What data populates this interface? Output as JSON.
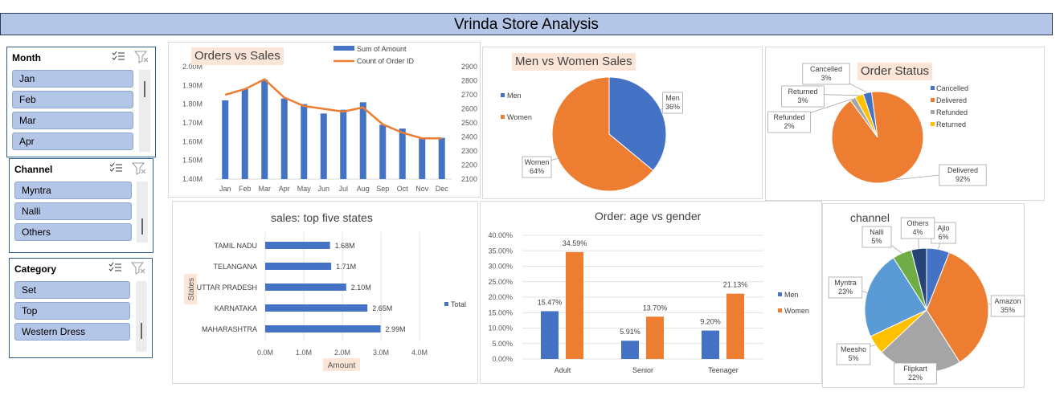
{
  "header": {
    "title": "Vrinda Store Analysis"
  },
  "slicers": [
    {
      "title": "Month",
      "items": [
        "Jan",
        "Feb",
        "Mar",
        "Apr"
      ]
    },
    {
      "title": "Channel",
      "items": [
        "Myntra",
        "Nalli",
        "Others"
      ]
    },
    {
      "title": "Category",
      "items": [
        "Set",
        "Top",
        "Western Dress"
      ]
    }
  ],
  "colors": {
    "blue": "#4472c4",
    "orange": "#ed7d31",
    "gray": "#a5a5a5",
    "gold": "#ffc000",
    "lightblue": "#5b9bd5",
    "green": "#70ad47",
    "navy": "#264478"
  },
  "chart_data": [
    {
      "id": "orders-vs-sales",
      "type": "bar+line",
      "title": "Orders vs Sales",
      "categories": [
        "Jan",
        "Feb",
        "Mar",
        "Apr",
        "May",
        "Jun",
        "Jul",
        "Aug",
        "Sep",
        "Oct",
        "Nov",
        "Dec"
      ],
      "series": [
        {
          "name": "Sum of Amount",
          "type": "bar",
          "axis": "left",
          "values": [
            1.82,
            1.88,
            1.93,
            1.83,
            1.8,
            1.75,
            1.77,
            1.81,
            1.69,
            1.67,
            1.62,
            1.62
          ]
        },
        {
          "name": "Count of Order ID",
          "type": "line",
          "axis": "right",
          "values": [
            2700,
            2740,
            2810,
            2680,
            2620,
            2600,
            2580,
            2610,
            2490,
            2430,
            2390,
            2390
          ]
        }
      ],
      "left_axis": {
        "min": 1.4,
        "max": 2.0,
        "ticks": [
          "1.40M",
          "1.50M",
          "1.60M",
          "1.70M",
          "1.80M",
          "1.90M",
          "2.00M"
        ]
      },
      "right_axis": {
        "min": 2100,
        "max": 2900,
        "ticks": [
          "2100",
          "2200",
          "2300",
          "2400",
          "2500",
          "2600",
          "2700",
          "2800",
          "2900"
        ]
      },
      "legend": "top-right"
    },
    {
      "id": "men-vs-women-sales",
      "type": "pie",
      "title": "Men vs Women Sales",
      "slices": [
        {
          "name": "Men",
          "value": 36,
          "label": "Men\n36%"
        },
        {
          "name": "Women",
          "value": 64,
          "label": "Women\n64%"
        }
      ],
      "legend": "left"
    },
    {
      "id": "order-status",
      "type": "pie",
      "title": "Order Status",
      "slices": [
        {
          "name": "Cancelled",
          "value": 3,
          "label": "Cancelled\n3%"
        },
        {
          "name": "Delivered",
          "value": 92,
          "label": "Delivered\n92%"
        },
        {
          "name": "Refunded",
          "value": 2,
          "label": "Refunded\n2%"
        },
        {
          "name": "Returned",
          "value": 3,
          "label": "Returned\n3%"
        }
      ],
      "legend": "right"
    },
    {
      "id": "top-five-states",
      "type": "bar",
      "orientation": "horizontal",
      "title": "sales: top five states",
      "categories": [
        "TAMIL NADU",
        "TELANGANA",
        "UTTAR PRADESH",
        "KARNATAKA",
        "MAHARASHTRA"
      ],
      "series": [
        {
          "name": "Total",
          "values": [
            1.68,
            1.71,
            2.1,
            2.65,
            2.99
          ],
          "labels": [
            "1.68M",
            "1.71M",
            "2.10M",
            "2.65M",
            "2.99M"
          ]
        }
      ],
      "xlabel": "Amount",
      "ylabel": "States",
      "xlim": [
        0,
        4.0
      ],
      "x_ticks": [
        "0.0M",
        "1.0M",
        "2.0M",
        "3.0M",
        "4.0M"
      ],
      "legend": "right"
    },
    {
      "id": "age-vs-gender",
      "type": "bar",
      "title": "Order: age vs gender",
      "categories": [
        "Adult",
        "Senior",
        "Teenager"
      ],
      "series": [
        {
          "name": "Men",
          "values": [
            15.47,
            5.91,
            9.2
          ],
          "labels": [
            "15.47%",
            "5.91%",
            "9.20%"
          ]
        },
        {
          "name": "Women",
          "values": [
            34.59,
            13.7,
            21.13
          ],
          "labels": [
            "34.59%",
            "13.70%",
            "21.13%"
          ]
        }
      ],
      "ylim": [
        0,
        40
      ],
      "y_ticks": [
        "0.00%",
        "5.00%",
        "10.00%",
        "15.00%",
        "20.00%",
        "25.00%",
        "30.00%",
        "35.00%",
        "40.00%"
      ],
      "legend": "right"
    },
    {
      "id": "channel",
      "type": "pie",
      "title": "channel",
      "slices": [
        {
          "name": "Ajio",
          "value": 6,
          "label": "Ajio\n6%"
        },
        {
          "name": "Amazon",
          "value": 35,
          "label": "Amazon\n35%"
        },
        {
          "name": "Flipkart",
          "value": 22,
          "label": "Flipkart\n22%"
        },
        {
          "name": "Meesho",
          "value": 5,
          "label": "Meesho\n5%"
        },
        {
          "name": "Myntra",
          "value": 23,
          "label": "Myntra\n23%"
        },
        {
          "name": "Nalli",
          "value": 5,
          "label": "Nalli\n5%"
        },
        {
          "name": "Others",
          "value": 4,
          "label": "Others\n4%"
        }
      ]
    }
  ]
}
